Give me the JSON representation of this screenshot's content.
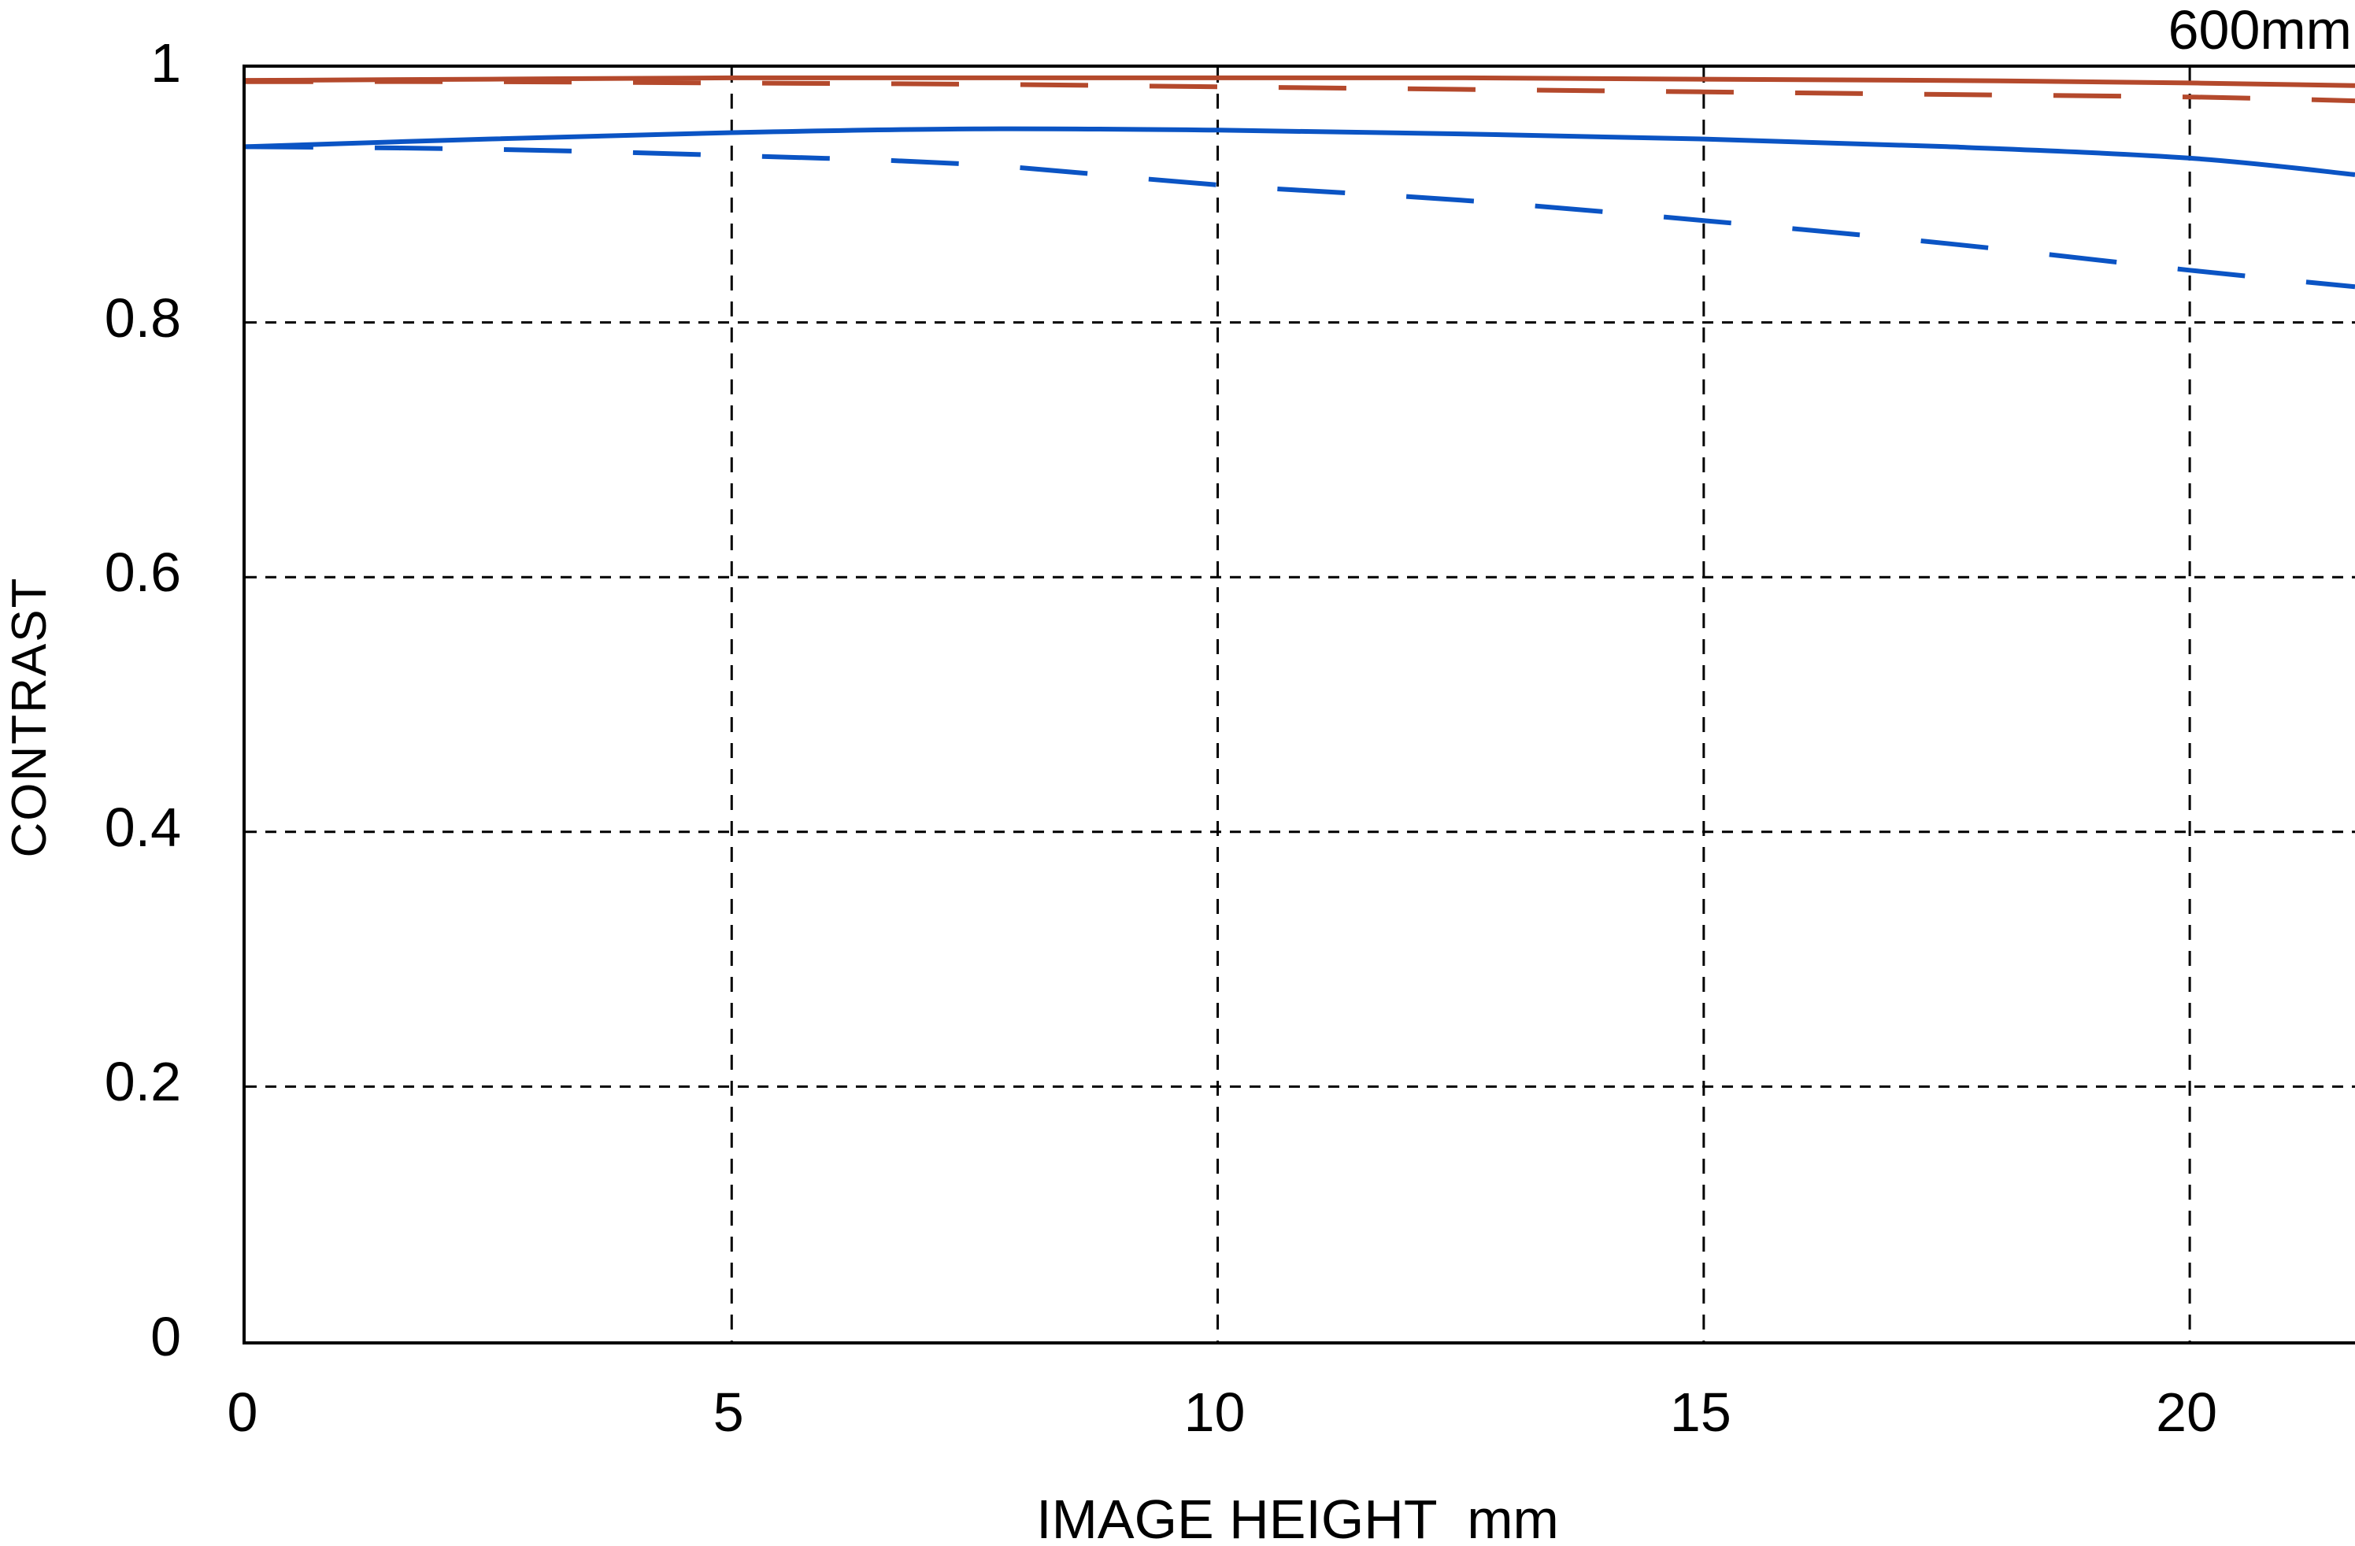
{
  "chart_data": {
    "type": "line",
    "title": "600mm",
    "xlabel": "IMAGE HEIGHT  mm",
    "ylabel": "CONTRAST",
    "xlim": [
      0,
      21.7
    ],
    "ylim": [
      0,
      1
    ],
    "xticks": {
      "values": [
        0,
        5,
        10,
        15,
        20
      ],
      "labels": [
        "0",
        "5",
        "10",
        "15",
        "20"
      ]
    },
    "yticks": {
      "values": [
        1,
        0.8,
        0.6,
        0.4,
        0.2,
        0
      ],
      "labels": [
        "1",
        "0.8",
        "0.6",
        "0.4",
        "0.2",
        "0"
      ]
    },
    "grid": {
      "vertical_x_values": [
        5,
        10,
        15,
        20
      ],
      "horizontal_y_values": [
        0.2,
        0.4,
        0.6,
        0.8
      ],
      "vertical_style": "dashed",
      "horizontal_style": "dotted",
      "color": "#000000"
    },
    "x": [
      0,
      2.5,
      5,
      7.5,
      10,
      12.5,
      15,
      17.5,
      20,
      21.7
    ],
    "series": [
      {
        "name": "red-solid",
        "color": "#B4492C",
        "line_style": "solid",
        "values": [
          0.99,
          0.991,
          0.992,
          0.992,
          0.992,
          0.992,
          0.991,
          0.99,
          0.988,
          0.986
        ]
      },
      {
        "name": "red-dashed",
        "color": "#B4492C",
        "line_style": "dashed",
        "values": [
          0.989,
          0.989,
          0.988,
          0.987,
          0.985,
          0.983,
          0.981,
          0.979,
          0.977,
          0.974
        ]
      },
      {
        "name": "blue-solid",
        "color": "#0B54C4",
        "line_style": "solid",
        "values": [
          0.938,
          0.944,
          0.949,
          0.952,
          0.951,
          0.948,
          0.944,
          0.938,
          0.929,
          0.916
        ]
      },
      {
        "name": "blue-dashed",
        "color": "#0B54C4",
        "line_style": "dashed",
        "values": [
          0.938,
          0.936,
          0.931,
          0.924,
          0.908,
          0.896,
          0.88,
          0.862,
          0.841,
          0.828
        ]
      }
    ],
    "colors": {
      "red_series": "#B4492C",
      "blue_series": "#0B54C4",
      "axis": "#000000"
    }
  }
}
